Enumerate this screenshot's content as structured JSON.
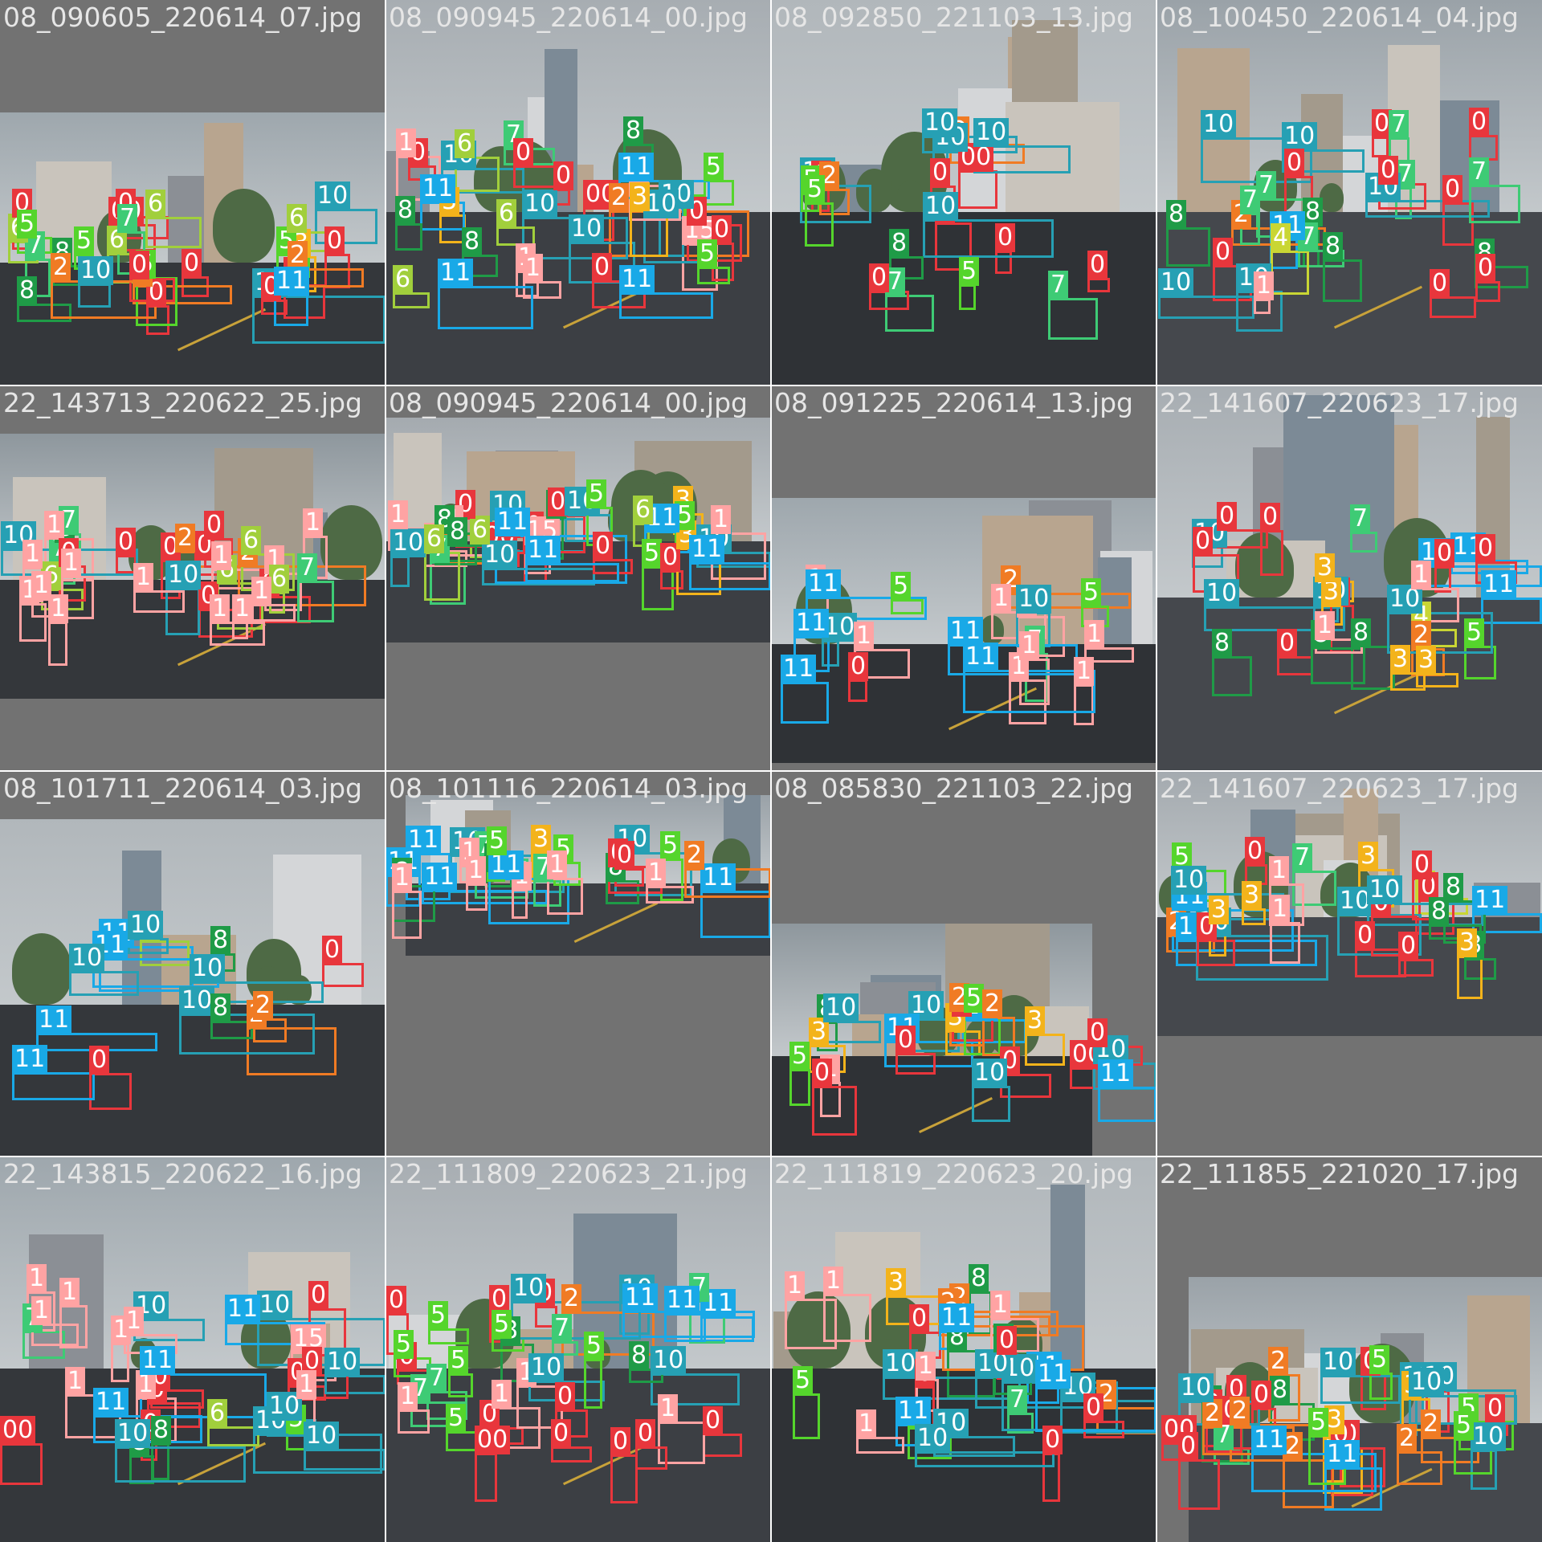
{
  "mosaic": {
    "background_color": "#727272",
    "class_colors": {
      "0": "#e8363c",
      "1": "#ffa3a3",
      "2": "#f07b24",
      "3": "#f3b31b",
      "4": "#c9d634",
      "5": "#55d52c",
      "6": "#a1cf3c",
      "7": "#3ecb75",
      "8": "#1f9b47",
      "10": "#26a0b4",
      "11": "#19a9e7"
    },
    "tiles": [
      {
        "caption": "08_090605_220614_07.jpg",
        "scene": "overcast city crossroads with buildings",
        "labels": [
          "7",
          "8",
          "8",
          "0",
          "0",
          "0",
          "00",
          "0",
          "3",
          "2",
          "5",
          "5",
          "6",
          "5",
          "10",
          "10",
          "0",
          "6",
          "0",
          "10",
          "6",
          "2",
          "0",
          "2",
          "6",
          "0",
          "11",
          "5",
          "7"
        ]
      },
      {
        "caption": "08_090945_220614_00.jpg",
        "scene": "road with yellow lane lines and parked cars",
        "labels": [
          "7",
          "0",
          "00",
          "5",
          "15",
          "2",
          "10",
          "0",
          "10",
          "10",
          "10",
          "8",
          "0",
          "10",
          "6",
          "0",
          "1",
          "1",
          "1",
          "3",
          "0",
          "3",
          "11",
          "1",
          "8",
          "8",
          "0",
          "5",
          "6",
          "5",
          "11",
          "11",
          "11",
          "6"
        ]
      },
      {
        "caption": "08_092850_221103_13.jpg",
        "scene": "road and tall apartment building",
        "labels": [
          "7",
          "2",
          "0",
          "00",
          "10",
          "10",
          "10",
          "0",
          "7",
          "5",
          "10",
          "0",
          "0",
          "0",
          "0",
          "5",
          "2",
          "5",
          "10",
          "8"
        ]
      },
      {
        "caption": "08_100450_220614_04.jpg",
        "scene": "city road with trees and cars",
        "labels": [
          "7",
          "8",
          "7",
          "8",
          "7",
          "0",
          "0",
          "11",
          "10",
          "10",
          "10",
          "10",
          "10",
          "0",
          "1",
          "2",
          "7",
          "8",
          "7",
          "7",
          "8",
          "0",
          "0",
          "0",
          "0",
          "0",
          "4"
        ]
      },
      {
        "caption": "22_143713_220622_25.jpg",
        "scene": "road with crowd of pedestrians",
        "labels": [
          "7",
          "8",
          "0",
          "7",
          "0",
          "0",
          "10",
          "2",
          "6",
          "0",
          "6",
          "2",
          "1",
          "1",
          "1",
          "1",
          "1",
          "1",
          "1",
          "6",
          "0",
          "7",
          "0",
          "0",
          "10",
          "1",
          "1",
          "1",
          "1",
          "1",
          "1",
          "6"
        ]
      },
      {
        "caption": "08_091225_220614_13.jpg",
        "scene": "road by trees and building",
        "labels": [
          "7",
          "0",
          "10",
          "2",
          "1",
          "1",
          "1",
          "1",
          "11",
          "1",
          "1",
          "1",
          "1",
          "10",
          "11",
          "5",
          "11",
          "11",
          "11",
          "5"
        ]
      },
      {
        "caption": "22_141607_220623_17.jpg",
        "scene": "highway with guard rail",
        "labels": [
          "4",
          "2",
          "11",
          "5",
          "0",
          "11",
          "8",
          "7",
          "0",
          "10",
          "10",
          "0",
          "0",
          "8",
          "0",
          "11",
          "10",
          "10",
          "0",
          "0",
          "3",
          "3",
          "3",
          "3",
          "8",
          "1",
          "1"
        ]
      },
      {
        "caption": "08_101711_220614_03.jpg",
        "scene": "apartment towers and school building",
        "labels": [
          "8",
          "0",
          "2",
          "10",
          "0",
          "11",
          "11",
          "6",
          "2",
          "10",
          "11",
          "10",
          "11",
          "10",
          "8"
        ]
      },
      {
        "caption": "08_101116_220614_03.jpg",
        "scene": "road with pedestrians and trees",
        "labels": [
          "11",
          "10",
          "10",
          "11",
          "5",
          "11",
          "11",
          "7",
          "7",
          "8",
          "8",
          "8",
          "0",
          "0",
          "3",
          "1",
          "1",
          "1",
          "11",
          "5",
          "5",
          "2",
          "1",
          "1",
          "1"
        ]
      },
      {
        "caption": "08_085830_221103_22.jpg",
        "scene": "city street with apartment buildings",
        "labels": [
          "8",
          "00",
          "10",
          "10",
          "11",
          "11",
          "11",
          "3",
          "3",
          "3",
          "1",
          "0",
          "0",
          "0",
          "0",
          "10",
          "0",
          "2",
          "5",
          "5",
          "10",
          "2"
        ]
      },
      {
        "caption": "22_111855_221020_17.jpg",
        "scene": "road with pedestrians and buses",
        "labels": [
          "7",
          "8",
          "0",
          "10",
          "0",
          "1",
          "1",
          "1",
          "1",
          "11",
          "6",
          "0",
          "10",
          "11",
          "0",
          "1"
        ]
      },
      {
        "caption": "22_111809_220623_21.jpg",
        "scene": "busy road with cars and traffic lights",
        "labels": [
          "7",
          "8",
          "7",
          "0",
          "0",
          "0",
          "0",
          "5",
          "0",
          "5",
          "10",
          "11",
          "10",
          "2",
          "1",
          "1",
          "1",
          "5",
          "7",
          "8",
          "7",
          "0",
          "0",
          "0",
          "0",
          "5",
          "0",
          "5",
          "10",
          "11",
          "10",
          "1",
          "00",
          "11",
          "5"
        ]
      },
      {
        "caption": "22_111819_220623_20.jpg",
        "scene": "road and apartment towers",
        "labels": [
          "2",
          "8",
          "7",
          "8",
          "2",
          "5",
          "2",
          "5",
          "2",
          "11",
          "11",
          "10",
          "10",
          "10",
          "10",
          "8",
          "0",
          "0",
          "0",
          "0",
          "3",
          "0",
          "11",
          "10",
          "11",
          "1",
          "1",
          "1",
          "1",
          "1",
          "10"
        ]
      },
      {
        "caption": "22_143815_220622_16.jpg",
        "scene": "road with pedestrians and parked cars",
        "labels": [
          "0",
          "8",
          "0",
          "0",
          "10",
          "0",
          "5",
          "15",
          "10",
          "10",
          "10",
          "7",
          "0",
          "00",
          "10",
          "0",
          "1",
          "1",
          "1",
          "1",
          "1",
          "1",
          "1",
          "1",
          "6",
          "8",
          "11",
          "11",
          "11",
          "10",
          "10"
        ]
      },
      {
        "caption": "22_111855_221020_17.jpg",
        "scene": "city street with crowd and buses",
        "labels": [
          "7",
          "8",
          "8",
          "0",
          "0",
          "0",
          "00",
          "2",
          "3",
          "0",
          "0",
          "0",
          "0",
          "3",
          "10",
          "10",
          "11",
          "2",
          "5",
          "10",
          "2",
          "3",
          "0",
          "00",
          "5",
          "10",
          "10",
          "0",
          "2",
          "5",
          "2",
          "11",
          "2",
          "5",
          "10"
        ]
      }
    ]
  }
}
